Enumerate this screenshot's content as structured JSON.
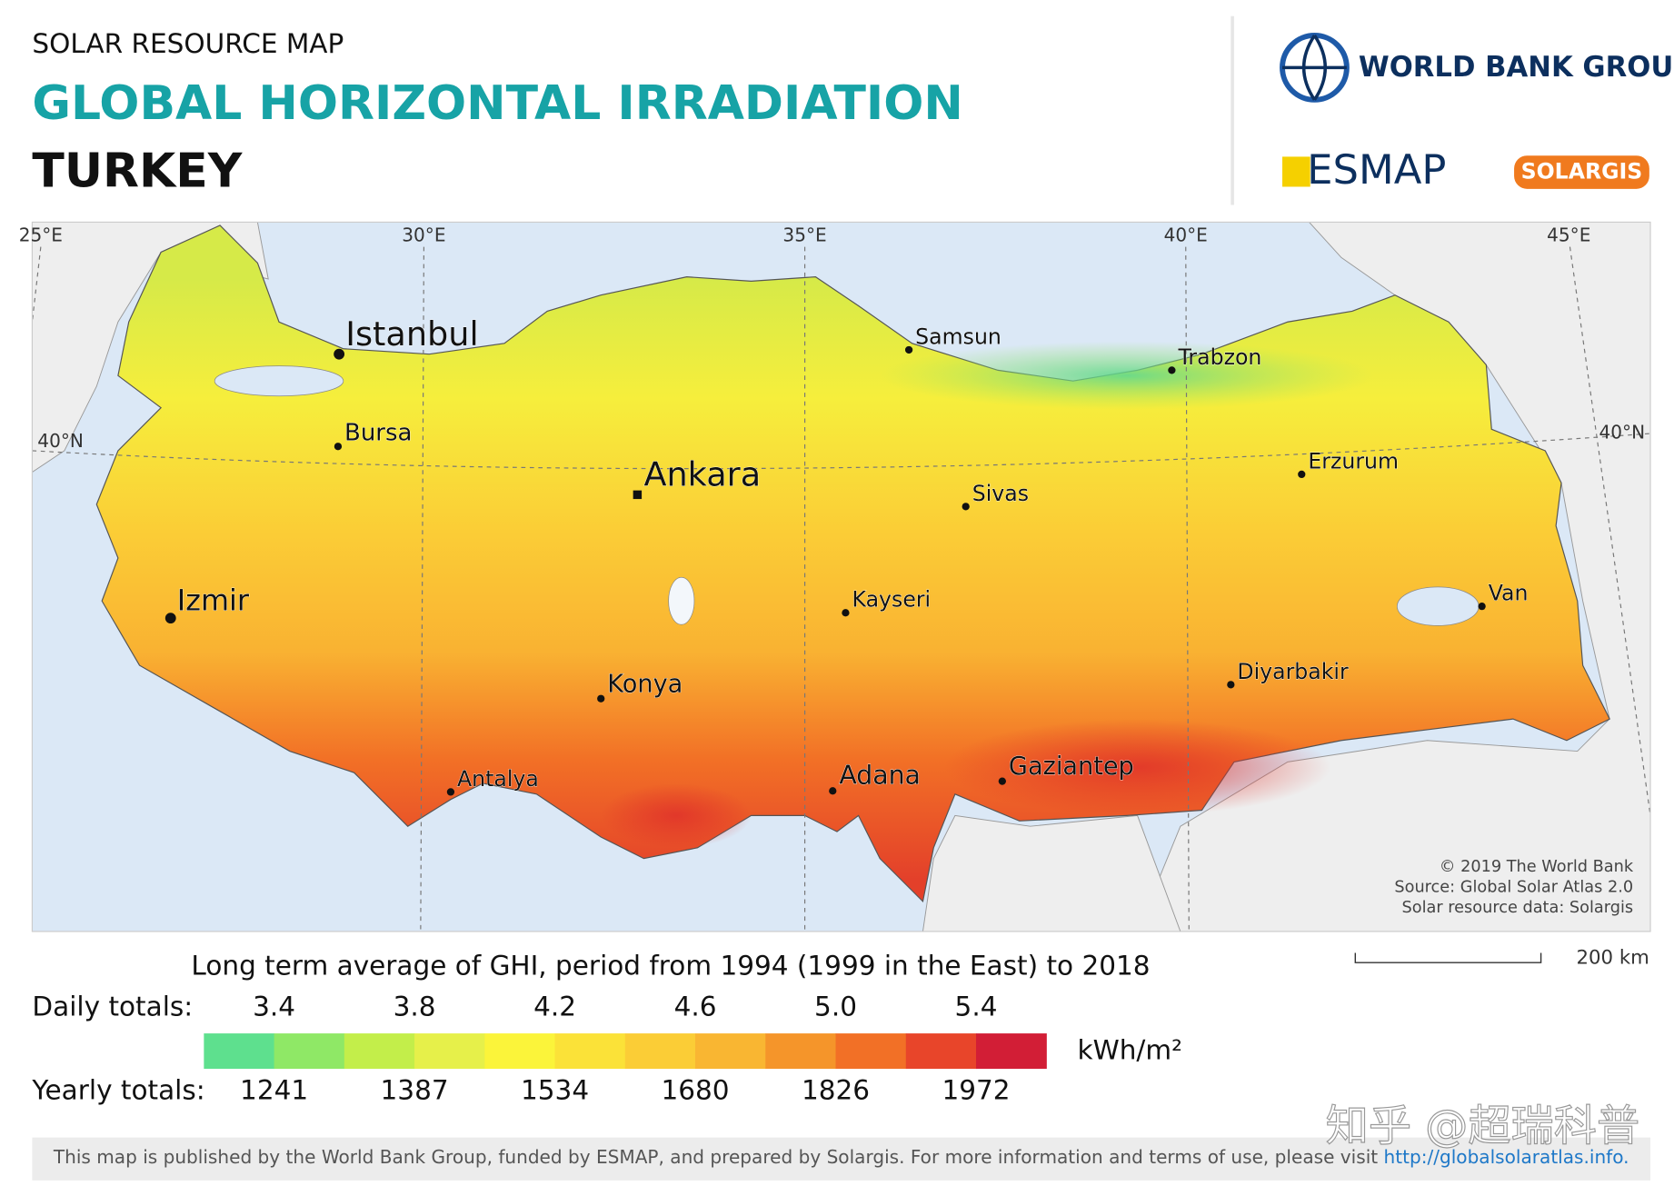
{
  "header": {
    "kicker": "SOLAR RESOURCE MAP",
    "title": "GLOBAL HORIZONTAL IRRADIATION",
    "country": "TURKEY"
  },
  "logos": {
    "world_bank": "WORLD BANK GROUP",
    "esmap": "ESMAP",
    "solargis": "SOLARGIS"
  },
  "map": {
    "coordinates": [
      "25°E",
      "30°E",
      "35°E",
      "40°E",
      "45°E",
      "40°N",
      "40°N"
    ],
    "cities": [
      "Istanbul",
      "Bursa",
      "Ankara",
      "Samsun",
      "Trabzon",
      "Erzurum",
      "Sivas",
      "Izmir",
      "Kayseri",
      "Van",
      "Konya",
      "Diyarbakir",
      "Antalya",
      "Adana",
      "Gaziantep"
    ],
    "credits": [
      "© 2019 The World Bank",
      "Source: Global Solar Atlas 2.0",
      "Solar resource data: Solargis"
    ],
    "scale": "200 km"
  },
  "legend": {
    "title": "Long term average of GHI, period from 1994 (1999 in the East) to 2018",
    "daily_label": "Daily totals:",
    "daily": [
      "3.4",
      "3.8",
      "4.2",
      "4.6",
      "5.0",
      "5.4"
    ],
    "yearly_label": "Yearly totals:",
    "yearly": [
      "1241",
      "1387",
      "1534",
      "1680",
      "1826",
      "1972"
    ],
    "unit": "kWh/m²"
  },
  "footer": {
    "text": "This map is published by the World Bank Group, funded by ESMAP, and prepared by Solargis. For more information and terms of use, please visit",
    "link": "http://globalsolaratlas.info."
  },
  "watermark": "知乎 @超瑞科普"
}
